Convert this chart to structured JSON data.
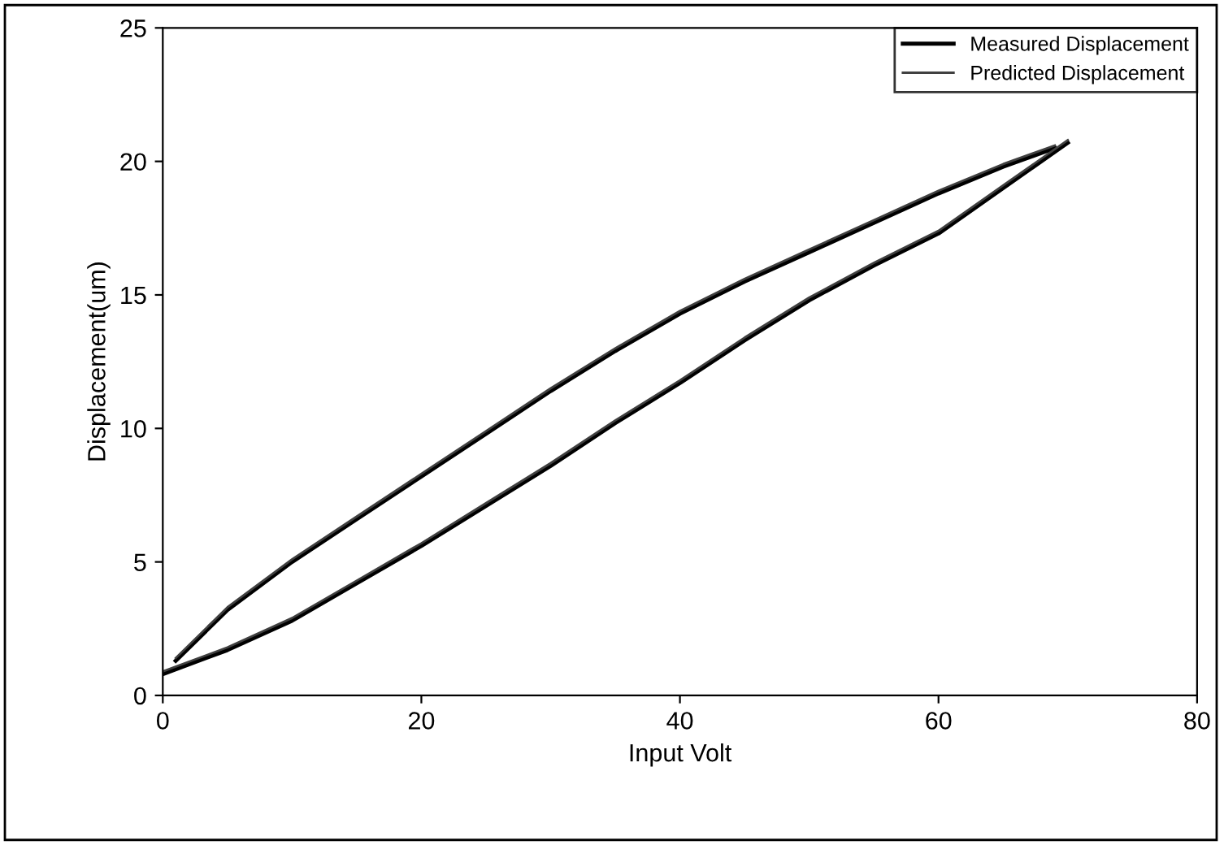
{
  "chart_data": {
    "type": "line",
    "xlabel": "Input Volt",
    "ylabel": "Displacement(um)",
    "xlim": [
      0,
      80
    ],
    "xticks": [
      0,
      20,
      40,
      60,
      80
    ],
    "ylim": [
      0,
      25
    ],
    "yticks": [
      0,
      5,
      10,
      15,
      20,
      25
    ],
    "grid": false,
    "legend": "top right",
    "marker": "none",
    "line_style": "solid",
    "series": [
      {
        "name": "Measured Displacement",
        "color": "#000000",
        "x": [
          0,
          5,
          10,
          15,
          20,
          25,
          30,
          35,
          40,
          45,
          50,
          55,
          60,
          65,
          70
        ],
        "values": [
          0.8,
          1.7,
          2.8,
          4.2,
          5.6,
          7.1,
          8.6,
          10.2,
          11.7,
          13.3,
          14.8,
          16.1,
          17.3,
          19.0,
          20.7
        ]
      },
      {
        "color": "#000000",
        "x": [
          1,
          5,
          10,
          15,
          20,
          25,
          30,
          35,
          40,
          45,
          50,
          55,
          60,
          65,
          69
        ],
        "values": [
          1.3,
          3.2,
          5.0,
          6.6,
          8.2,
          9.8,
          11.4,
          12.9,
          14.3,
          15.5,
          16.6,
          17.7,
          18.8,
          19.8,
          20.5
        ]
      },
      {
        "name": "Predicted Displacement",
        "color": "#404040",
        "x": [
          0,
          5,
          10,
          15,
          20,
          25,
          30,
          35,
          40,
          45,
          50,
          55,
          60,
          65,
          70
        ],
        "values": [
          0.9,
          1.8,
          2.9,
          4.3,
          5.7,
          7.2,
          8.7,
          10.3,
          11.8,
          13.4,
          14.9,
          16.2,
          17.4,
          19.1,
          20.8
        ]
      },
      {
        "color": "#404040",
        "x": [
          1,
          5,
          10,
          15,
          20,
          25,
          30,
          35,
          40,
          45,
          50,
          55,
          60,
          65,
          69
        ],
        "values": [
          1.4,
          3.3,
          5.1,
          6.7,
          8.3,
          9.9,
          11.5,
          13.0,
          14.4,
          15.6,
          16.7,
          17.8,
          18.9,
          19.9,
          20.6
        ]
      }
    ]
  }
}
